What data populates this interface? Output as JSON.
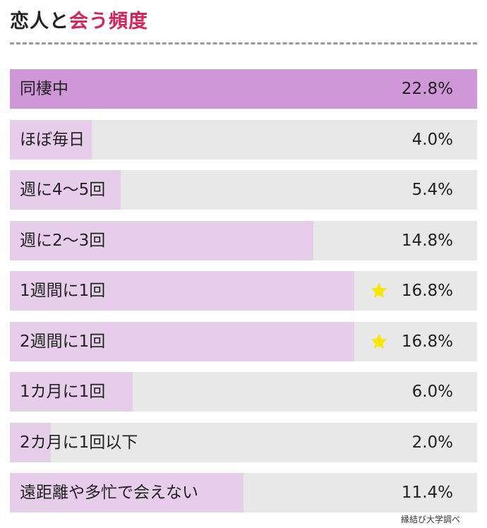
{
  "title": {
    "part1": "恋人と",
    "part2": "会う頻度"
  },
  "source": "縁結び大学調べ",
  "colors": {
    "accent": "#d4235a",
    "bar_top": "#cf97d8",
    "bar": "#e6cdea",
    "track": "#e8e8e8",
    "star": "#f5e60c"
  },
  "chart_data": {
    "type": "bar",
    "orientation": "horizontal",
    "categories": [
      "同棲中",
      "ほぼ毎日",
      "週に4〜5回",
      "週に2〜3回",
      "1週間に1回",
      "2週間に1回",
      "1カ月に1回",
      "2カ月に1回以下",
      "遠距離や多忙で会えない"
    ],
    "values": [
      22.8,
      4.0,
      5.4,
      14.8,
      16.8,
      16.8,
      6.0,
      2.0,
      11.4
    ],
    "value_labels": [
      "22.8%",
      "4.0%",
      "5.4%",
      "14.8%",
      "16.8%",
      "16.8%",
      "6.0%",
      "2.0%",
      "11.4%"
    ],
    "unit": "%",
    "starred": [
      false,
      false,
      false,
      false,
      true,
      true,
      false,
      false,
      false
    ],
    "highlighted": [
      true,
      false,
      false,
      false,
      false,
      false,
      false,
      false,
      false
    ],
    "xlim": [
      0,
      22.8
    ]
  }
}
